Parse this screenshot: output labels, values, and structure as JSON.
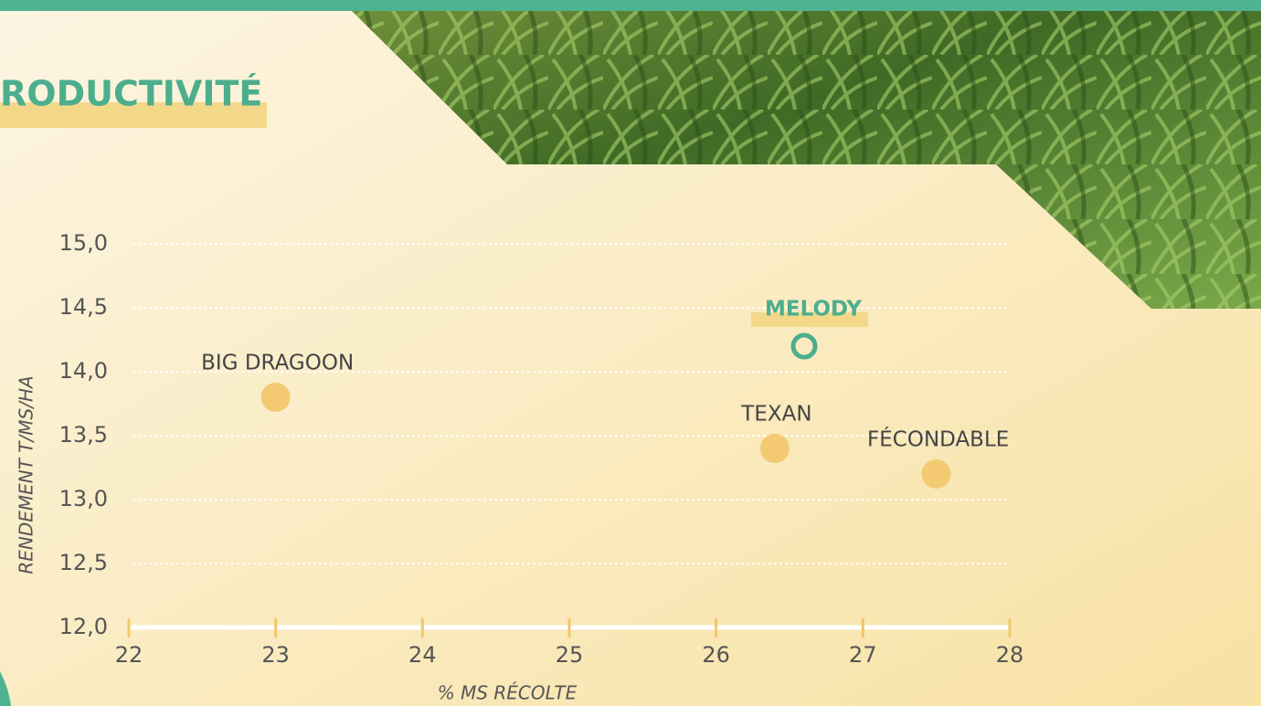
{
  "chart_data": {
    "type": "scatter",
    "title": "RODUCTIVITÉ",
    "y_label": "RENDEMENT T/MS/HA",
    "x_label": "% MS RÉCOLTE",
    "xlim": [
      22,
      28
    ],
    "xticks": [
      22,
      23,
      24,
      25,
      26,
      27,
      28
    ],
    "ylim": [
      12,
      15
    ],
    "yticks": [
      {
        "value": 12,
        "label": "12,0"
      },
      {
        "value": 12.5,
        "label": "12,5"
      },
      {
        "value": 13,
        "label": "13,0"
      },
      {
        "value": 13.5,
        "label": "13,5"
      },
      {
        "value": 14,
        "label": "14,0"
      },
      {
        "value": 14.5,
        "label": "14,5"
      },
      {
        "value": 15,
        "label": "15,0"
      }
    ],
    "grid": true,
    "series": [
      {
        "name": "BIG DRAGOON",
        "color": "#f3ca72",
        "marker": "dot",
        "x": [
          23
        ],
        "values": [
          13.8
        ]
      },
      {
        "name": "TEXAN",
        "color": "#f3ca72",
        "marker": "dot",
        "x": [
          26.4
        ],
        "values": [
          13.4
        ]
      },
      {
        "name": "FÉCONDABLE",
        "color": "#f3ca72",
        "marker": "dot",
        "x": [
          27.5
        ],
        "values": [
          13.2
        ]
      },
      {
        "name": "MELODY",
        "color": "#4cae8d",
        "marker": "ring",
        "x": [
          26.6
        ],
        "values": [
          14.2
        ]
      }
    ]
  }
}
